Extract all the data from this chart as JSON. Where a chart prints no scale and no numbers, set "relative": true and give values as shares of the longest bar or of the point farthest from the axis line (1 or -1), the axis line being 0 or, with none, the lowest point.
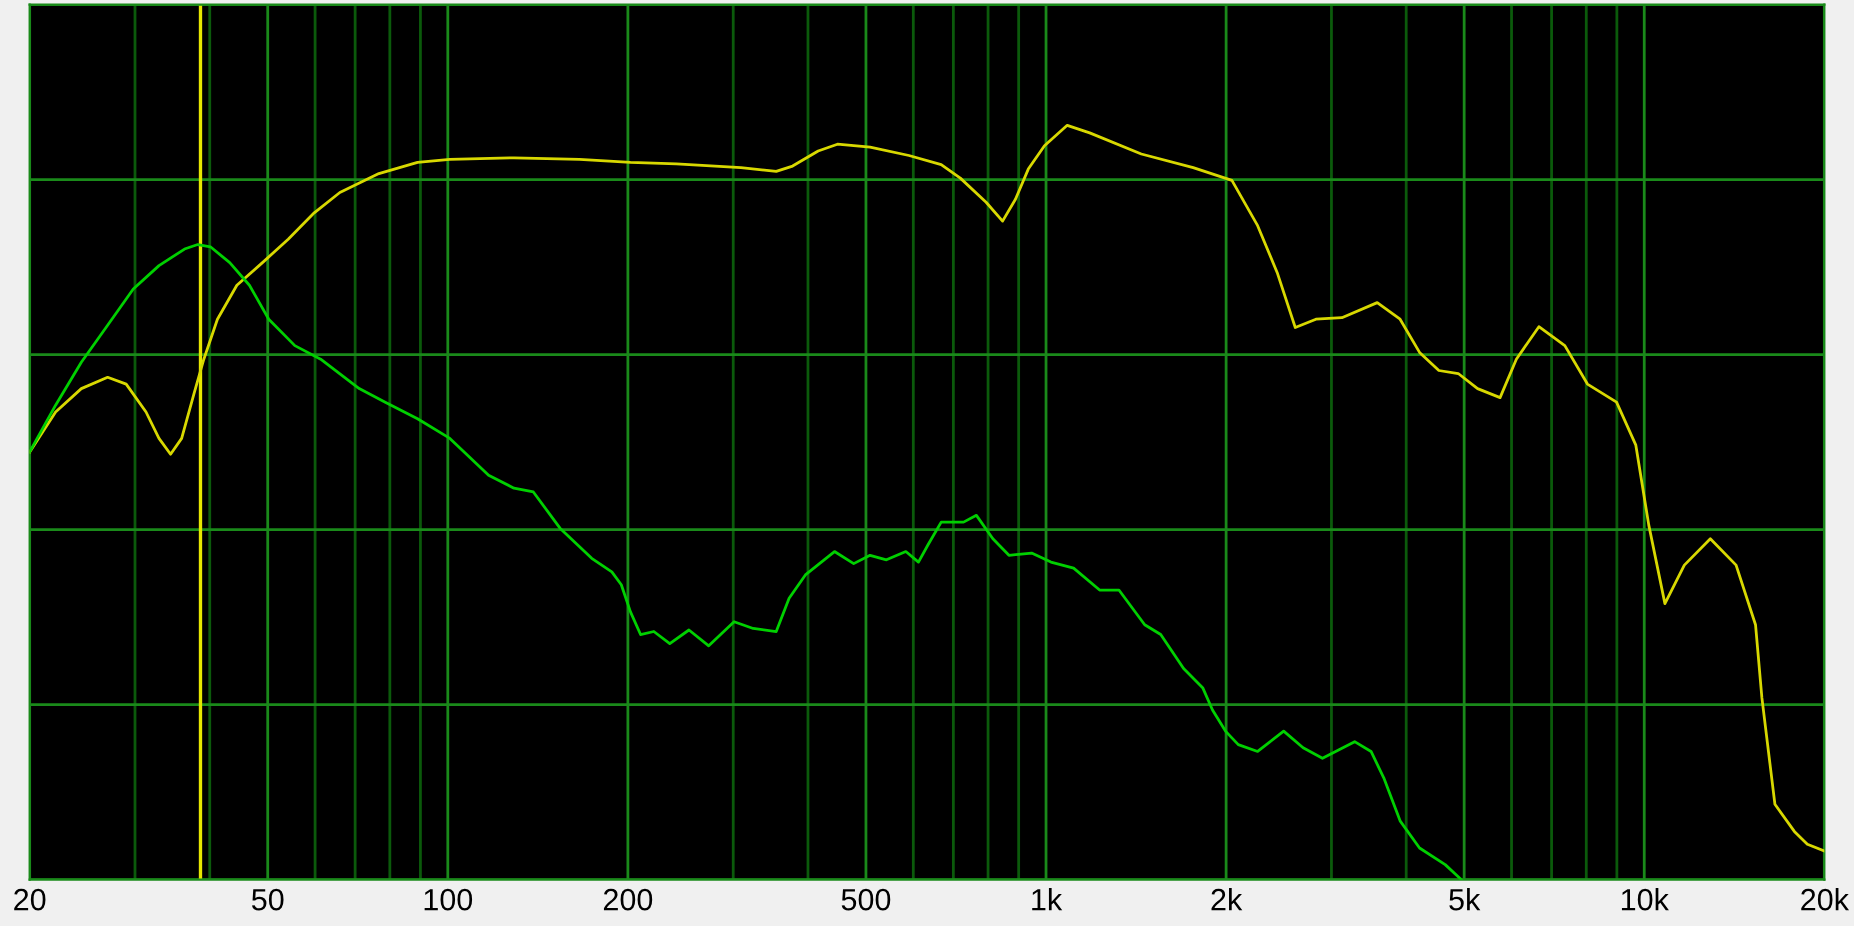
{
  "chart_data": {
    "type": "line",
    "relative": true,
    "log": "x",
    "grid": true,
    "xlim": [
      20,
      20000
    ],
    "xticks": [
      20,
      {
        "value": 30,
        "label": null
      },
      {
        "value": 40,
        "label": null
      },
      50,
      {
        "value": 60,
        "label": null
      },
      {
        "value": 70,
        "label": null
      },
      {
        "value": 80,
        "label": null
      },
      {
        "value": 90,
        "label": null
      },
      100,
      200,
      {
        "value": 300,
        "label": null
      },
      {
        "value": 400,
        "label": null
      },
      500,
      {
        "value": 600,
        "label": null
      },
      {
        "value": 700,
        "label": null
      },
      {
        "value": 800,
        "label": null
      },
      {
        "value": 900,
        "label": null
      },
      {
        "value": 1000,
        "label": "1k"
      },
      {
        "value": 2000,
        "label": "2k"
      },
      {
        "value": 3000,
        "label": null
      },
      {
        "value": 4000,
        "label": null
      },
      {
        "value": 5000,
        "label": "5k"
      },
      {
        "value": 6000,
        "label": null
      },
      {
        "value": 7000,
        "label": null
      },
      {
        "value": 8000,
        "label": null
      },
      {
        "value": 9000,
        "label": null
      },
      {
        "value": 10000,
        "label": "10k"
      },
      {
        "value": 20000,
        "label": "20k"
      }
    ],
    "ref_lines": [
      {
        "axis": "x",
        "value": 38.6,
        "color": "#e6e600"
      }
    ],
    "series": [
      {
        "color": "#d8d800",
        "x": [
          20,
          22.1,
          24.4,
          27.0,
          29.0,
          31.3,
          32.9,
          34.4,
          35.9,
          37.7,
          39.1,
          41.2,
          44.4,
          49.0,
          54.1,
          59.8,
          66.0,
          76.7,
          89.0,
          100.8,
          129,
          166,
          202,
          241,
          309,
          354,
          377,
          416,
          448,
          508,
          590,
          668,
          719,
          794,
          846,
          889,
          934,
          994,
          1085,
          1183,
          1443,
          1762,
          2045,
          2258,
          2434,
          2610,
          2826,
          3123,
          3578,
          3907,
          4211,
          4536,
          4887,
          5265,
          5741,
          6112,
          6666,
          7366,
          8036,
          8988,
          9681,
          10176,
          10828,
          11668,
          12896,
          14240,
          15346,
          15728,
          16535,
          17820,
          18734,
          20000
        ],
        "values": [
          0.567,
          0.62,
          0.651,
          0.666,
          0.657,
          0.62,
          0.585,
          0.564,
          0.585,
          0.646,
          0.69,
          0.743,
          0.788,
          0.818,
          0.849,
          0.884,
          0.911,
          0.936,
          0.951,
          0.955,
          0.957,
          0.955,
          0.951,
          0.949,
          0.944,
          0.939,
          0.946,
          0.966,
          0.975,
          0.971,
          0.96,
          0.948,
          0.93,
          0.898,
          0.873,
          0.902,
          0.942,
          0.973,
          1.0,
          0.99,
          0.962,
          0.944,
          0.927,
          0.867,
          0.805,
          0.732,
          0.743,
          0.745,
          0.765,
          0.743,
          0.699,
          0.675,
          0.671,
          0.651,
          0.639,
          0.69,
          0.733,
          0.708,
          0.657,
          0.633,
          0.576,
          0.47,
          0.366,
          0.417,
          0.452,
          0.417,
          0.338,
          0.241,
          0.1,
          0.064,
          0.047,
          0.038
        ]
      },
      {
        "color": "#00d000",
        "x": [
          20,
          22.1,
          24.4,
          27.0,
          29.8,
          32.9,
          36.3,
          38.2,
          40.1,
          43.2,
          46.6,
          50.2,
          55.5,
          61.3,
          71.1,
          78.6,
          89.0,
          100.8,
          117,
          129,
          139,
          154,
          174,
          188,
          195,
          202,
          210,
          221,
          235,
          253,
          273,
          301,
          324,
          354,
          372,
          396,
          443,
          477,
          508,
          541,
          583,
          612,
          635,
          668,
          728,
          765,
          815,
          867,
          946,
          1019,
          1112,
          1229,
          1324,
          1462,
          1555,
          1698,
          1829,
          1898,
          1995,
          2096,
          2258,
          2496,
          2690,
          2898,
          3280,
          3494,
          3669,
          3907,
          4211,
          4648,
          4948
        ],
        "values": [
          0.567,
          0.629,
          0.686,
          0.735,
          0.783,
          0.814,
          0.836,
          0.842,
          0.839,
          0.818,
          0.788,
          0.743,
          0.708,
          0.69,
          0.651,
          0.633,
          0.611,
          0.585,
          0.536,
          0.519,
          0.514,
          0.466,
          0.426,
          0.408,
          0.391,
          0.355,
          0.325,
          0.329,
          0.313,
          0.331,
          0.31,
          0.342,
          0.333,
          0.329,
          0.373,
          0.404,
          0.435,
          0.419,
          0.43,
          0.424,
          0.435,
          0.421,
          0.444,
          0.474,
          0.474,
          0.483,
          0.452,
          0.43,
          0.433,
          0.421,
          0.413,
          0.384,
          0.384,
          0.338,
          0.325,
          0.28,
          0.254,
          0.225,
          0.197,
          0.179,
          0.17,
          0.197,
          0.175,
          0.161,
          0.183,
          0.17,
          0.135,
          0.078,
          0.042,
          0.02,
          0.0
        ]
      }
    ]
  }
}
